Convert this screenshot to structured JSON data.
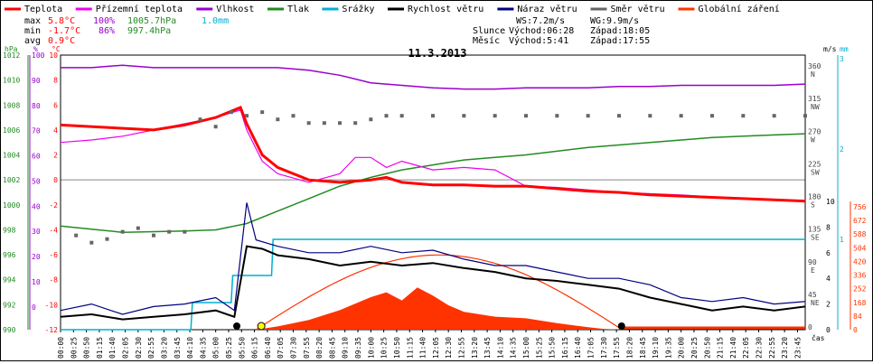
{
  "title": "11.3.2013",
  "legend": [
    {
      "label": "Teplota",
      "color": "#ff0000"
    },
    {
      "label": "Přízemní teplota",
      "color": "#ee00ee"
    },
    {
      "label": "Vlhkost",
      "color": "#9900cc"
    },
    {
      "label": "Tlak",
      "color": "#228b22"
    },
    {
      "label": "Srážky",
      "color": "#00b0d0"
    },
    {
      "label": "Rychlost větru",
      "color": "#000000"
    },
    {
      "label": "Náraz větru",
      "color": "#000080"
    },
    {
      "label": "Směr větru",
      "color": "#666666"
    },
    {
      "label": "Globální záření",
      "color": "#ff3300"
    }
  ],
  "stats": {
    "max_label": "max",
    "max_temp": "5.8°C",
    "max_hum": "100%",
    "max_press": "1005.7hPa",
    "max_rain": "1.0mm",
    "min_label": "min",
    "min_temp": "-1.7°C",
    "min_hum": "86%",
    "min_press": "997.4hPa",
    "avg_label": "avg",
    "avg_temp": "0.9°C"
  },
  "wind": {
    "ws": "WS:7.2m/s",
    "wg": "WG:9.9m/s"
  },
  "sun": {
    "label": "Slunce",
    "rise": "Východ:06:28",
    "set": "Západ:18:05"
  },
  "moon": {
    "label": "Měsíc",
    "rise": "Východ:5:41",
    "set": "Západ:17:55"
  },
  "axes": {
    "left_units": [
      "hPa",
      "%",
      "°C"
    ],
    "right_units": [
      "m/s",
      "mm"
    ],
    "xlabel": "čas",
    "press_ticks": [
      1012,
      1010,
      1008,
      1006,
      1004,
      1002,
      1000,
      998,
      996,
      994,
      992,
      990
    ],
    "hum_ticks": [
      100,
      90,
      80,
      70,
      60,
      50,
      40,
      30,
      20,
      10,
      0
    ],
    "temp_ticks": [
      10,
      8,
      6,
      4,
      2,
      0,
      -2,
      -4,
      -6,
      -8,
      -10,
      -12
    ],
    "dir_ticks": [
      {
        "deg": 360,
        "name": "N"
      },
      {
        "deg": 315,
        "name": "NW"
      },
      {
        "deg": 270,
        "name": "W"
      },
      {
        "deg": 225,
        "name": "SW"
      },
      {
        "deg": 180,
        "name": "S"
      },
      {
        "deg": 135,
        "name": "SE"
      },
      {
        "deg": 90,
        "name": "E"
      },
      {
        "deg": 45,
        "name": "NE"
      },
      {
        "deg": 0,
        "name": ""
      }
    ],
    "speed_ticks": [
      10,
      8,
      6,
      4,
      2,
      0
    ],
    "rain_ticks": [
      3,
      2,
      1
    ],
    "rad_ticks": [
      756,
      672,
      588,
      504,
      420,
      336,
      252,
      168,
      84,
      0
    ],
    "time_ticks": [
      "00:00",
      "00:25",
      "00:50",
      "01:15",
      "01:40",
      "02:05",
      "02:30",
      "02:55",
      "03:20",
      "03:45",
      "04:10",
      "04:35",
      "05:00",
      "05:25",
      "05:50",
      "06:15",
      "06:40",
      "07:05",
      "07:30",
      "07:55",
      "08:20",
      "08:45",
      "09:10",
      "09:35",
      "10:00",
      "10:25",
      "10:50",
      "11:15",
      "11:40",
      "12:05",
      "12:30",
      "12:55",
      "13:20",
      "13:45",
      "14:10",
      "14:35",
      "15:00",
      "15:25",
      "15:50",
      "16:15",
      "16:40",
      "17:05",
      "17:30",
      "17:55",
      "18:20",
      "18:45",
      "19:10",
      "19:35",
      "20:00",
      "20:25",
      "20:50",
      "21:15",
      "21:40",
      "22:05",
      "22:30",
      "22:55",
      "23:20",
      "23:45"
    ]
  },
  "chart_data": {
    "type": "line",
    "title": "11.3.2013",
    "x_unit": "hours",
    "xlim": [
      0,
      24
    ],
    "series": [
      {
        "name": "Teplota",
        "unit": "°C",
        "x": [
          0,
          3,
          4,
          5,
          5.8,
          6,
          6.5,
          7,
          8,
          9,
          10,
          10.5,
          11,
          12,
          13,
          14,
          15,
          16,
          17,
          18,
          19,
          20,
          21,
          22,
          23,
          24
        ],
        "y": [
          4.4,
          4.0,
          4.4,
          5.0,
          5.8,
          4.5,
          2.0,
          1.0,
          0.0,
          -0.2,
          0.0,
          0.2,
          -0.2,
          -0.4,
          -0.4,
          -0.5,
          -0.5,
          -0.7,
          -0.9,
          -1.0,
          -1.2,
          -1.3,
          -1.4,
          -1.5,
          -1.6,
          -1.7
        ]
      },
      {
        "name": "Přízemní teplota",
        "unit": "°C",
        "x": [
          0,
          1,
          2,
          3,
          4,
          5,
          5.8,
          6,
          6.5,
          7,
          8,
          9,
          9.5,
          10,
          10.5,
          11,
          12,
          13,
          14,
          15,
          16,
          17,
          18,
          20,
          22,
          24
        ],
        "y": [
          3.0,
          3.2,
          3.5,
          4.0,
          4.5,
          5.0,
          5.6,
          4.0,
          1.5,
          0.5,
          -0.2,
          0.5,
          1.8,
          1.8,
          1.0,
          1.5,
          0.8,
          1.0,
          0.8,
          -0.5,
          -0.6,
          -0.8,
          -1.0,
          -1.2,
          -1.5,
          -1.7
        ]
      },
      {
        "name": "Vlhkost",
        "unit": "%",
        "x": [
          0,
          1,
          2,
          3,
          4,
          5,
          6,
          7,
          8,
          9,
          10,
          11,
          12,
          13,
          14,
          15,
          16,
          17,
          18,
          19,
          20,
          21,
          22,
          23,
          24
        ],
        "y": [
          95,
          95,
          96,
          95,
          95,
          95,
          95,
          95,
          94,
          92,
          89,
          88,
          87,
          86.5,
          86.5,
          87,
          87,
          87,
          87.5,
          87.5,
          88,
          88,
          88,
          88,
          88.5
        ]
      },
      {
        "name": "Tlak",
        "unit": "hPa",
        "x": [
          0,
          2,
          4,
          5,
          6,
          7,
          8,
          9,
          10,
          11,
          12,
          13,
          14,
          15,
          16,
          17,
          18,
          19,
          20,
          21,
          22,
          23,
          24
        ],
        "y": [
          998.3,
          997.8,
          997.9,
          998.0,
          998.5,
          999.5,
          1000.5,
          1001.5,
          1002.2,
          1002.8,
          1003.2,
          1003.6,
          1003.8,
          1004.0,
          1004.3,
          1004.6,
          1004.8,
          1005.0,
          1005.2,
          1005.4,
          1005.5,
          1005.6,
          1005.7
        ]
      },
      {
        "name": "Srážky",
        "unit": "mm",
        "x": [
          0,
          4.2,
          4.25,
          5.5,
          5.55,
          6.8,
          6.85,
          24
        ],
        "y": [
          0,
          0,
          0.3,
          0.3,
          0.6,
          0.6,
          1.0,
          1.0
        ]
      },
      {
        "name": "Rychlost větru",
        "unit": "m/s",
        "x": [
          0,
          1,
          2,
          3,
          4,
          5,
          5.6,
          6,
          6.5,
          7,
          8,
          9,
          10,
          11,
          12,
          13,
          14,
          15,
          16,
          17,
          18,
          19,
          20,
          21,
          22,
          23,
          24
        ],
        "y": [
          1.0,
          1.2,
          0.8,
          1.0,
          1.2,
          1.5,
          1.0,
          6.5,
          6.3,
          5.8,
          5.5,
          5.0,
          5.3,
          5.0,
          5.2,
          4.8,
          4.5,
          4.0,
          3.8,
          3.5,
          3.2,
          2.5,
          2.0,
          1.5,
          1.8,
          1.5,
          1.8
        ]
      },
      {
        "name": "Náraz větru",
        "unit": "m/s",
        "x": [
          0,
          1,
          2,
          3,
          4,
          5,
          5.6,
          6,
          6.3,
          7,
          8,
          9,
          10,
          11,
          12,
          13,
          14,
          15,
          16,
          17,
          18,
          19,
          20,
          21,
          22,
          23,
          24
        ],
        "y": [
          1.5,
          2.0,
          1.2,
          1.8,
          2.0,
          2.5,
          1.5,
          9.9,
          7.0,
          6.5,
          6.0,
          6.0,
          6.5,
          6.0,
          6.2,
          5.5,
          5.0,
          5.0,
          4.5,
          4.0,
          4.0,
          3.5,
          2.5,
          2.2,
          2.5,
          2.0,
          2.2
        ]
      },
      {
        "name": "Směr větru",
        "unit": "°",
        "x": [
          0.5,
          1,
          1.5,
          2,
          2.5,
          3,
          3.5,
          4,
          4.5,
          5,
          5.5,
          6,
          6.5,
          7,
          7.5,
          8,
          8.5,
          9,
          9.5,
          10,
          10.5,
          11,
          12,
          13,
          14,
          15,
          16,
          17,
          18,
          19,
          20,
          21,
          22,
          23,
          24
        ],
        "y": [
          130,
          120,
          125,
          135,
          140,
          130,
          135,
          135,
          290,
          280,
          300,
          295,
          300,
          290,
          295,
          285,
          285,
          285,
          285,
          290,
          295,
          295,
          295,
          295,
          295,
          295,
          295,
          295,
          295,
          295,
          295,
          295,
          295,
          295,
          295
        ]
      },
      {
        "name": "Globální záření",
        "unit": "W/m²",
        "x": [
          6.3,
          7,
          8,
          9,
          10,
          10.5,
          11,
          11.5,
          12,
          12.5,
          13,
          14,
          15,
          16,
          17,
          17.5,
          18.1
        ],
        "y": [
          0,
          20,
          60,
          120,
          200,
          230,
          180,
          260,
          210,
          150,
          110,
          80,
          70,
          40,
          15,
          5,
          0
        ]
      }
    ]
  }
}
